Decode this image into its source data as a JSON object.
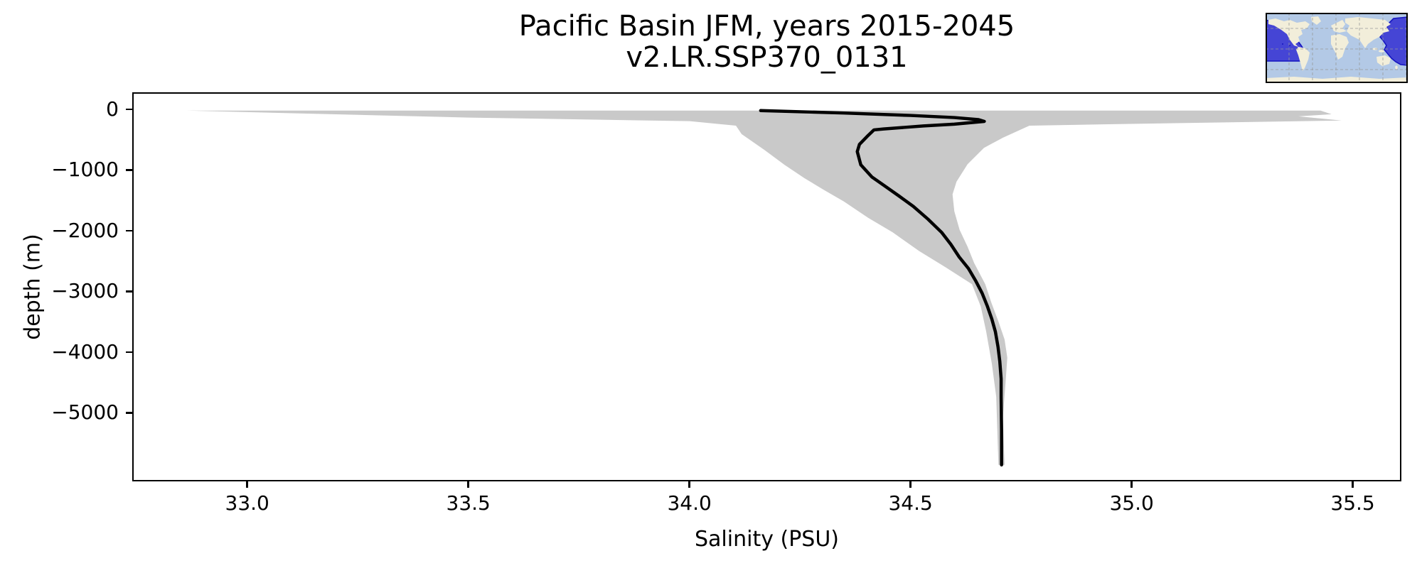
{
  "figure": {
    "background": "#ffffff"
  },
  "chart_data": {
    "type": "line",
    "title_lines": [
      "Pacific Basin JFM, years 2015-2045",
      "v2.LR.SSP370_0131"
    ],
    "xlabel": "Salinity (PSU)",
    "ylabel": "depth (m)",
    "xlim": [
      32.74,
      35.61
    ],
    "ylim": [
      -6130,
      280
    ],
    "grid": false,
    "legend": "none",
    "xticks": {
      "values": [
        33.0,
        33.5,
        34.0,
        34.5,
        35.0,
        35.5
      ],
      "labels": [
        "33.0",
        "33.5",
        "34.0",
        "34.5",
        "35.0",
        "35.5"
      ]
    },
    "yticks": {
      "values": [
        0,
        -1000,
        -2000,
        -3000,
        -4000,
        -5000
      ],
      "labels": [
        "0",
        "−1000",
        "−2000",
        "−3000",
        "−4000",
        "−5000"
      ]
    },
    "series": [
      {
        "name": "min-max salinity envelope",
        "type": "band",
        "color": "#c9c9c9",
        "upper": [
          [
            35.43,
            0
          ],
          [
            35.455,
            -60
          ],
          [
            35.38,
            -95
          ],
          [
            35.478,
            -165
          ],
          [
            34.96,
            -225
          ],
          [
            34.77,
            -250
          ],
          [
            34.71,
            -450
          ],
          [
            34.667,
            -620
          ],
          [
            34.63,
            -890
          ],
          [
            34.605,
            -1180
          ],
          [
            34.596,
            -1390
          ],
          [
            34.6,
            -1670
          ],
          [
            34.612,
            -1980
          ],
          [
            34.63,
            -2260
          ],
          [
            34.645,
            -2530
          ],
          [
            34.67,
            -2880
          ],
          [
            34.684,
            -3190
          ],
          [
            34.7,
            -3500
          ],
          [
            34.714,
            -3800
          ],
          [
            34.72,
            -4100
          ],
          [
            34.716,
            -4520
          ],
          [
            34.71,
            -5100
          ],
          [
            34.714,
            -5880
          ]
        ],
        "lower": [
          [
            32.86,
            0
          ],
          [
            33.5,
            -117
          ],
          [
            34.0,
            -175
          ],
          [
            34.105,
            -250
          ],
          [
            34.118,
            -390
          ],
          [
            34.17,
            -655
          ],
          [
            34.215,
            -900
          ],
          [
            34.26,
            -1120
          ],
          [
            34.305,
            -1320
          ],
          [
            34.35,
            -1510
          ],
          [
            34.405,
            -1780
          ],
          [
            34.46,
            -2020
          ],
          [
            34.52,
            -2330
          ],
          [
            34.58,
            -2600
          ],
          [
            34.64,
            -2880
          ],
          [
            34.66,
            -3250
          ],
          [
            34.672,
            -3660
          ],
          [
            34.685,
            -4200
          ],
          [
            34.695,
            -4750
          ],
          [
            34.7,
            -5880
          ]
        ]
      },
      {
        "name": "mean salinity profile",
        "type": "line",
        "color": "#000000",
        "width": 4.5,
        "points": [
          [
            34.161,
            0
          ],
          [
            34.35,
            -40
          ],
          [
            34.5,
            -80
          ],
          [
            34.6,
            -115
          ],
          [
            34.655,
            -150
          ],
          [
            34.668,
            -180
          ],
          [
            34.6,
            -225
          ],
          [
            34.53,
            -255
          ],
          [
            34.44,
            -305
          ],
          [
            34.418,
            -320
          ],
          [
            34.405,
            -410
          ],
          [
            34.385,
            -560
          ],
          [
            34.38,
            -680
          ],
          [
            34.388,
            -900
          ],
          [
            34.413,
            -1100
          ],
          [
            34.442,
            -1250
          ],
          [
            34.475,
            -1420
          ],
          [
            34.507,
            -1590
          ],
          [
            34.54,
            -1800
          ],
          [
            34.571,
            -2020
          ],
          [
            34.592,
            -2220
          ],
          [
            34.611,
            -2430
          ],
          [
            34.632,
            -2620
          ],
          [
            34.648,
            -2820
          ],
          [
            34.663,
            -3030
          ],
          [
            34.675,
            -3250
          ],
          [
            34.685,
            -3460
          ],
          [
            34.693,
            -3670
          ],
          [
            34.699,
            -3920
          ],
          [
            34.703,
            -4160
          ],
          [
            34.706,
            -4450
          ],
          [
            34.706,
            -4750
          ],
          [
            34.707,
            -5300
          ],
          [
            34.707,
            -5880
          ]
        ]
      }
    ]
  },
  "inset_map": {
    "name": "Pacific basin region map",
    "ocean_color": "#b3c9e6",
    "land_color": "#f2eeda",
    "region_fill": "#4545d5",
    "region_border": "#1515c0",
    "grid_color": "#999999",
    "frame_color": "#000000"
  }
}
